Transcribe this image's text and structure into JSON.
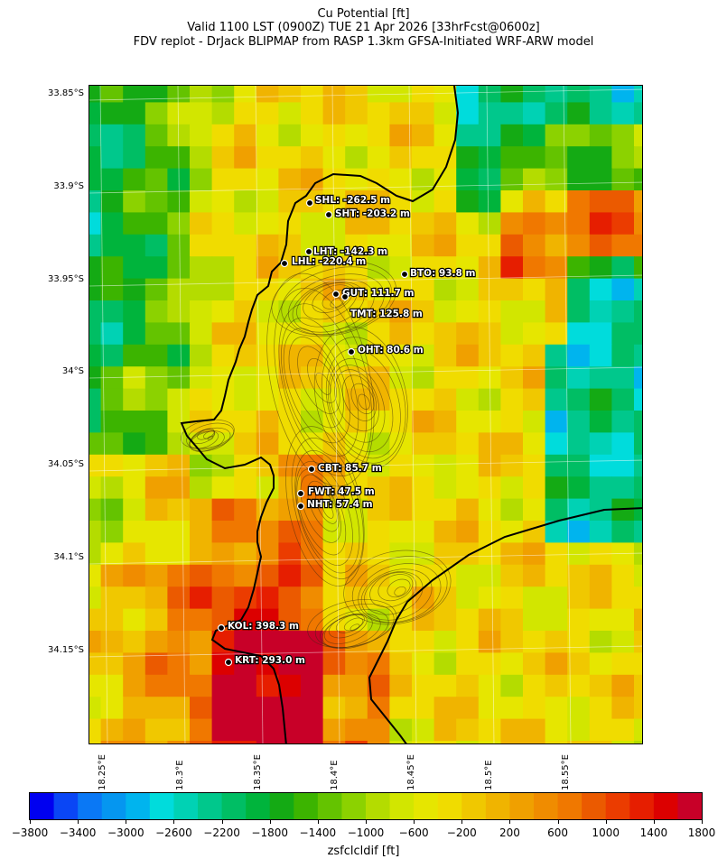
{
  "title": {
    "line1": "Cu Potential [ft]",
    "line2": "Valid 1100 LST (0900Z) TUE 21 Apr 2026 [33hrFcst@0600z]",
    "line3": "FDV replot - DrJack BLIPMAP from RASP 1.3km GFSA-Initiated WRF-ARW model"
  },
  "lat_labels": [
    "33.85°S",
    "33.9°S",
    "33.95°S",
    "34°S",
    "34.05°S",
    "34.1°S",
    "34.15°S"
  ],
  "lon_labels": [
    "18.25°E",
    "18.3°E",
    "18.35°E",
    "18.4°E",
    "18.45°E",
    "18.5°E",
    "18.55°E"
  ],
  "stations": [
    {
      "label": "SHL: -262.5 m"
    },
    {
      "label": "SHT: -203.2 m"
    },
    {
      "label": "LHT: -142.3 m"
    },
    {
      "label": "LHL: -220.4 m"
    },
    {
      "label": "BTO: 93.8 m"
    },
    {
      "label": "GUT: 111.7 m"
    },
    {
      "label": "TMT: 125.8 m"
    },
    {
      "label": "OHT: 80.6 m"
    },
    {
      "label": "CBT: 85.7 m"
    },
    {
      "label": "FWT: 47.5 m"
    },
    {
      "label": "NHT: 57.4 m"
    },
    {
      "label": "KOL: 398.3 m"
    },
    {
      "label": "KRT: 293.0 m"
    }
  ],
  "colorbar": {
    "label": "zsfclcldif [ft]",
    "ticks": [
      "−3800",
      "−3400",
      "−3000",
      "−2600",
      "−2200",
      "−1800",
      "−1400",
      "−1000",
      "−600",
      "−200",
      "200",
      "600",
      "1000",
      "1400",
      "1800"
    ],
    "colors": [
      "#0000f0",
      "#0a46f5",
      "#0a78f5",
      "#0596f0",
      "#00b4ee",
      "#00dcdc",
      "#00d2b4",
      "#00c88c",
      "#00be64",
      "#00b43c",
      "#14aa14",
      "#3cb400",
      "#64c300",
      "#8cd200",
      "#b4dc00",
      "#d2e600",
      "#e6e600",
      "#f0dc00",
      "#f0c800",
      "#f0b400",
      "#f0a000",
      "#f08c00",
      "#f07800",
      "#eb5a00",
      "#eb3c00",
      "#e61e00",
      "#dc0000",
      "#c80028"
    ]
  }
}
